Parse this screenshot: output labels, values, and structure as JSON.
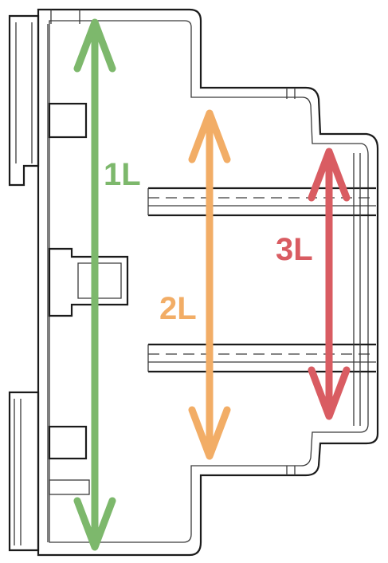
{
  "dimensions": [
    {
      "id": "1L",
      "label": "1L",
      "color": "#7db86c"
    },
    {
      "id": "2L",
      "label": "2L",
      "color": "#f2ad66"
    },
    {
      "id": "3L",
      "label": "3L",
      "color": "#d95c62"
    }
  ]
}
